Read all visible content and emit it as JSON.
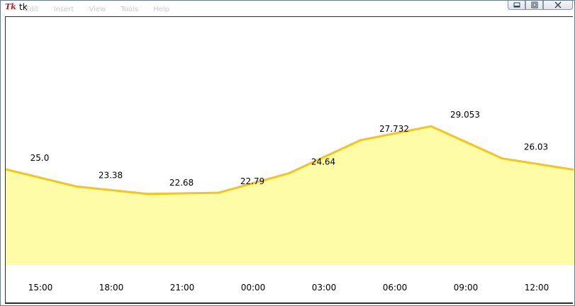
{
  "window": {
    "icon": "Tk",
    "title": "tk",
    "menu": [
      "Edit",
      "Insert",
      "View",
      "Tools",
      "Help"
    ],
    "controls": {
      "minimize_icon": "minimize-icon",
      "maximize_icon": "maximize-icon",
      "close_icon": "close-icon"
    }
  },
  "chart_data": {
    "type": "area",
    "categories": [
      "15:00",
      "18:00",
      "21:00",
      "00:00",
      "03:00",
      "06:00",
      "09:00",
      "12:00"
    ],
    "series": [
      {
        "values": [
          25.0,
          23.38,
          22.68,
          22.79,
          24.64,
          27.732,
          29.053,
          26.03
        ]
      }
    ],
    "data_labels": [
      "25.0",
      "23.38",
      "22.68",
      "22.79",
      "24.64",
      "27.732",
      "29.053",
      "26.03"
    ],
    "colors": {
      "line": "#f5c518",
      "fill": "#fffca8"
    },
    "ylim": [
      16,
      32
    ],
    "grid": false,
    "legend": false,
    "xlabel": "",
    "ylabel": "",
    "title": ""
  }
}
